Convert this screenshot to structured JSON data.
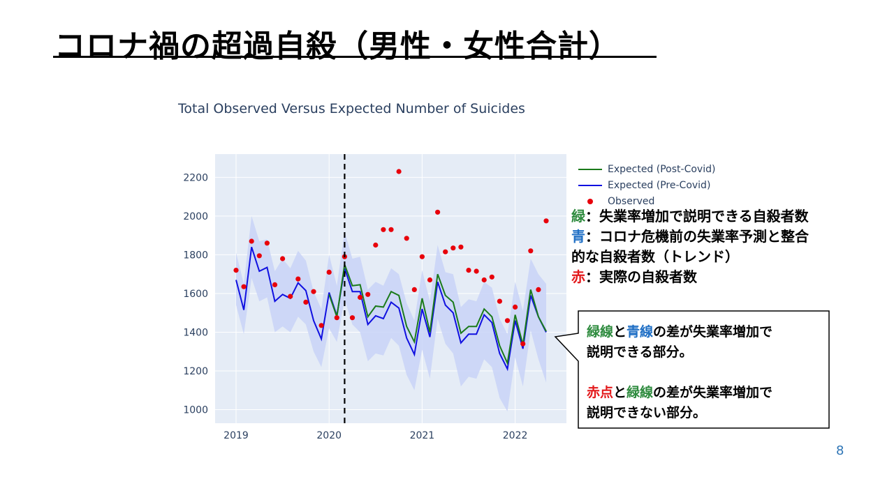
{
  "slide": {
    "title": "コロナ禍の超過自殺（男性・女性合計）",
    "page_number": "8"
  },
  "notes": {
    "green_key": "緑",
    "green_text": "：失業率増加で説明できる自殺者数",
    "blue_key": "青",
    "blue_text": "：コロナ危機前の失業率予測と整合",
    "blue_text2": "的な自殺者数（トレンド）",
    "red_key": "赤",
    "red_text": "：実際の自殺者数"
  },
  "callout": {
    "l1_a": "緑線",
    "l1_b": "と",
    "l1_c": "青線",
    "l1_d": "の差が失業率増加で",
    "l2": "説明できる部分。",
    "l3_a": "赤点",
    "l3_b": "と",
    "l3_c": "緑線",
    "l3_d": "の差が失業率増加で",
    "l4": "説明できない部分。"
  },
  "colors": {
    "green": "#1a7a1a",
    "blue": "#1010e0",
    "red": "#e8000b",
    "band": "#c9d3f7",
    "plot_bg": "#e5ecf6"
  },
  "chart_data": {
    "type": "line",
    "title": "Total Observed Versus Expected Number of Suicides",
    "x_start": "2019-01",
    "x_ticks": [
      "2019",
      "2020",
      "2021",
      "2022"
    ],
    "y_ticks": [
      1000,
      1200,
      1400,
      1600,
      1800,
      2000,
      2200
    ],
    "ylim": [
      930,
      2320
    ],
    "vline": "2020-03",
    "legend_position": "right",
    "series": [
      {
        "name": "Expected (Post-Covid)",
        "type": "line",
        "start": "2020-01",
        "values": [
          1595,
          1480,
          1750,
          1640,
          1645,
          1480,
          1535,
          1530,
          1610,
          1590,
          1430,
          1350,
          1575,
          1400,
          1700,
          1590,
          1555,
          1395,
          1430,
          1430,
          1520,
          1480,
          1330,
          1240,
          1490,
          1335,
          1620,
          1480,
          1405
        ]
      },
      {
        "name": "Expected (Pre-Covid)",
        "type": "line",
        "start": "2019-01",
        "values": [
          1670,
          1515,
          1840,
          1715,
          1735,
          1560,
          1595,
          1575,
          1655,
          1615,
          1460,
          1365,
          1605,
          1485,
          1730,
          1610,
          1610,
          1440,
          1485,
          1470,
          1555,
          1525,
          1370,
          1285,
          1520,
          1375,
          1660,
          1540,
          1500,
          1345,
          1390,
          1390,
          1490,
          1450,
          1290,
          1210,
          1460,
          1315,
          1590,
          1480,
          1400
        ]
      },
      {
        "name": "Observed",
        "type": "scatter",
        "start": "2019-01",
        "values": [
          1720,
          1635,
          1870,
          1795,
          1860,
          1645,
          1780,
          1585,
          1675,
          1555,
          1610,
          1435,
          1710,
          1475,
          1790,
          1475,
          1580,
          1595,
          1850,
          1930,
          1930,
          2230,
          1885,
          1620,
          1790,
          1670,
          2020,
          1815,
          1835,
          1840,
          1720,
          1715,
          1670,
          1685,
          1560,
          1460,
          1530,
          1340,
          1820,
          1620,
          1975
        ]
      }
    ],
    "band": {
      "start": "2019-01",
      "upper": [
        1810,
        1650,
        2000,
        1870,
        1880,
        1715,
        1780,
        1730,
        1820,
        1770,
        1610,
        1520,
        1800,
        1640,
        1920,
        1780,
        1790,
        1620,
        1660,
        1640,
        1730,
        1700,
        1550,
        1460,
        1720,
        1560,
        1850,
        1710,
        1700,
        1530,
        1570,
        1560,
        1660,
        1630,
        1470,
        1390,
        1660,
        1510,
        1780,
        1700,
        1650
      ],
      "lower": [
        1540,
        1390,
        1680,
        1560,
        1580,
        1400,
        1430,
        1400,
        1480,
        1440,
        1300,
        1220,
        1420,
        1350,
        1570,
        1440,
        1400,
        1250,
        1290,
        1280,
        1370,
        1330,
        1180,
        1100,
        1310,
        1160,
        1470,
        1340,
        1290,
        1120,
        1170,
        1160,
        1260,
        1220,
        1060,
        990,
        1270,
        1120,
        1410,
        1260,
        1140
      ]
    }
  }
}
